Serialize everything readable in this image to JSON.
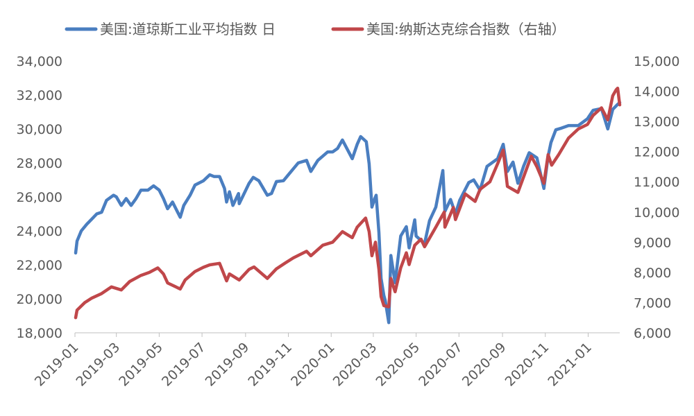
{
  "chart_data": {
    "type": "line",
    "title": "",
    "legend_position": "top",
    "grid": false,
    "x_ticks": [
      "2019-01",
      "2019-03",
      "2019-05",
      "2019-07",
      "2019-09",
      "2019-11",
      "2020-01",
      "2020-03",
      "2020-05",
      "2020-07",
      "2020-09",
      "2020-11",
      "2021-01"
    ],
    "x_range": [
      "2019-01",
      "2021-02-15"
    ],
    "y_left": {
      "range": [
        18000,
        34000
      ],
      "ticks": [
        "18,000",
        "20,000",
        "22,000",
        "24,000",
        "26,000",
        "28,000",
        "30,000",
        "32,000",
        "34,000"
      ]
    },
    "y_right": {
      "range": [
        6000,
        15000
      ],
      "ticks": [
        "6,000",
        "7,000",
        "8,000",
        "9,000",
        "10,000",
        "11,000",
        "12,000",
        "13,000",
        "14,000",
        "15,000"
      ]
    },
    "series": [
      {
        "name": "美国:道琼斯工业平均指数 日",
        "color": "#4A7EC0",
        "axis": "left",
        "points": [
          [
            "2019-01-02",
            22700
          ],
          [
            "2019-01-04",
            23400
          ],
          [
            "2019-01-10",
            24000
          ],
          [
            "2019-01-18",
            24400
          ],
          [
            "2019-01-25",
            24700
          ],
          [
            "2019-02-01",
            25000
          ],
          [
            "2019-02-08",
            25100
          ],
          [
            "2019-02-15",
            25800
          ],
          [
            "2019-02-25",
            26100
          ],
          [
            "2019-03-01",
            26000
          ],
          [
            "2019-03-08",
            25500
          ],
          [
            "2019-03-15",
            25900
          ],
          [
            "2019-03-22",
            25500
          ],
          [
            "2019-03-29",
            25900
          ],
          [
            "2019-04-05",
            26400
          ],
          [
            "2019-04-15",
            26400
          ],
          [
            "2019-04-23",
            26650
          ],
          [
            "2019-05-01",
            26400
          ],
          [
            "2019-05-07",
            25900
          ],
          [
            "2019-05-13",
            25300
          ],
          [
            "2019-05-20",
            25700
          ],
          [
            "2019-05-31",
            24800
          ],
          [
            "2019-06-05",
            25500
          ],
          [
            "2019-06-14",
            26100
          ],
          [
            "2019-06-21",
            26700
          ],
          [
            "2019-07-03",
            26950
          ],
          [
            "2019-07-12",
            27300
          ],
          [
            "2019-07-18",
            27200
          ],
          [
            "2019-07-26",
            27200
          ],
          [
            "2019-08-02",
            26500
          ],
          [
            "2019-08-05",
            25700
          ],
          [
            "2019-08-09",
            26300
          ],
          [
            "2019-08-14",
            25500
          ],
          [
            "2019-08-22",
            26200
          ],
          [
            "2019-08-23",
            25600
          ],
          [
            "2019-09-06",
            26800
          ],
          [
            "2019-09-12",
            27150
          ],
          [
            "2019-09-20",
            26950
          ],
          [
            "2019-10-02",
            26100
          ],
          [
            "2019-10-08",
            26200
          ],
          [
            "2019-10-15",
            26900
          ],
          [
            "2019-10-25",
            26950
          ],
          [
            "2019-11-01",
            27300
          ],
          [
            "2019-11-15",
            28000
          ],
          [
            "2019-11-27",
            28150
          ],
          [
            "2019-12-03",
            27500
          ],
          [
            "2019-12-13",
            28150
          ],
          [
            "2019-12-27",
            28650
          ],
          [
            "2020-01-03",
            28650
          ],
          [
            "2020-01-10",
            28850
          ],
          [
            "2020-01-17",
            29350
          ],
          [
            "2020-01-31",
            28250
          ],
          [
            "2020-02-07",
            29100
          ],
          [
            "2020-02-12",
            29550
          ],
          [
            "2020-02-20",
            29250
          ],
          [
            "2020-02-24",
            27950
          ],
          [
            "2020-02-28",
            25400
          ],
          [
            "2020-03-03",
            25900
          ],
          [
            "2020-03-05",
            26100
          ],
          [
            "2020-03-09",
            23900
          ],
          [
            "2020-03-12",
            21200
          ],
          [
            "2020-03-16",
            20200
          ],
          [
            "2020-03-18",
            19900
          ],
          [
            "2020-03-23",
            18600
          ],
          [
            "2020-03-26",
            22550
          ],
          [
            "2020-04-01",
            20950
          ],
          [
            "2020-04-09",
            23700
          ],
          [
            "2020-04-17",
            24250
          ],
          [
            "2020-04-21",
            23000
          ],
          [
            "2020-04-29",
            24650
          ],
          [
            "2020-05-01",
            23700
          ],
          [
            "2020-05-13",
            23250
          ],
          [
            "2020-05-20",
            24600
          ],
          [
            "2020-05-29",
            25400
          ],
          [
            "2020-06-08",
            27550
          ],
          [
            "2020-06-11",
            25150
          ],
          [
            "2020-06-19",
            25850
          ],
          [
            "2020-06-26",
            25000
          ],
          [
            "2020-07-02",
            25800
          ],
          [
            "2020-07-15",
            26850
          ],
          [
            "2020-07-22",
            27000
          ],
          [
            "2020-07-31",
            26400
          ],
          [
            "2020-08-10",
            27800
          ],
          [
            "2020-08-25",
            28250
          ],
          [
            "2020-09-02",
            29100
          ],
          [
            "2020-09-08",
            27500
          ],
          [
            "2020-09-16",
            28050
          ],
          [
            "2020-09-23",
            26800
          ],
          [
            "2020-10-01",
            27800
          ],
          [
            "2020-10-09",
            28600
          ],
          [
            "2020-10-20",
            28300
          ],
          [
            "2020-10-30",
            26500
          ],
          [
            "2020-11-05",
            28400
          ],
          [
            "2020-11-09",
            29200
          ],
          [
            "2020-11-16",
            29950
          ],
          [
            "2020-11-24",
            30050
          ],
          [
            "2020-12-04",
            30200
          ],
          [
            "2020-12-18",
            30200
          ],
          [
            "2020-12-31",
            30600
          ],
          [
            "2021-01-08",
            31100
          ],
          [
            "2021-01-20",
            31200
          ],
          [
            "2021-01-29",
            30000
          ],
          [
            "2021-02-05",
            31150
          ],
          [
            "2021-02-12",
            31450
          ],
          [
            "2021-02-15",
            31550
          ]
        ]
      },
      {
        "name": "美国:纳斯达克综合指数（右轴）",
        "color": "#C0474A",
        "axis": "right",
        "points": [
          [
            "2019-01-02",
            6500
          ],
          [
            "2019-01-04",
            6750
          ],
          [
            "2019-01-15",
            7000
          ],
          [
            "2019-01-25",
            7150
          ],
          [
            "2019-02-08",
            7300
          ],
          [
            "2019-02-22",
            7520
          ],
          [
            "2019-03-08",
            7420
          ],
          [
            "2019-03-20",
            7700
          ],
          [
            "2019-04-05",
            7900
          ],
          [
            "2019-04-17",
            8000
          ],
          [
            "2019-04-29",
            8150
          ],
          [
            "2019-05-07",
            7950
          ],
          [
            "2019-05-13",
            7650
          ],
          [
            "2019-05-31",
            7450
          ],
          [
            "2019-06-07",
            7750
          ],
          [
            "2019-06-21",
            8030
          ],
          [
            "2019-07-03",
            8170
          ],
          [
            "2019-07-12",
            8250
          ],
          [
            "2019-07-26",
            8300
          ],
          [
            "2019-08-05",
            7720
          ],
          [
            "2019-08-09",
            7950
          ],
          [
            "2019-08-23",
            7750
          ],
          [
            "2019-09-06",
            8100
          ],
          [
            "2019-09-13",
            8180
          ],
          [
            "2019-10-02",
            7800
          ],
          [
            "2019-10-15",
            8120
          ],
          [
            "2019-10-28",
            8320
          ],
          [
            "2019-11-08",
            8480
          ],
          [
            "2019-11-27",
            8700
          ],
          [
            "2019-12-03",
            8550
          ],
          [
            "2019-12-20",
            8900
          ],
          [
            "2020-01-03",
            9000
          ],
          [
            "2020-01-17",
            9350
          ],
          [
            "2020-01-31",
            9150
          ],
          [
            "2020-02-07",
            9500
          ],
          [
            "2020-02-19",
            9800
          ],
          [
            "2020-02-24",
            9350
          ],
          [
            "2020-02-28",
            8550
          ],
          [
            "2020-03-04",
            9000
          ],
          [
            "2020-03-09",
            8100
          ],
          [
            "2020-03-12",
            7200
          ],
          [
            "2020-03-16",
            6900
          ],
          [
            "2020-03-23",
            6860
          ],
          [
            "2020-03-26",
            7800
          ],
          [
            "2020-04-01",
            7360
          ],
          [
            "2020-04-09",
            8150
          ],
          [
            "2020-04-17",
            8650
          ],
          [
            "2020-04-21",
            8260
          ],
          [
            "2020-04-29",
            8900
          ],
          [
            "2020-05-08",
            9100
          ],
          [
            "2020-05-13",
            8850
          ],
          [
            "2020-05-29",
            9500
          ],
          [
            "2020-06-10",
            10000
          ],
          [
            "2020-06-11",
            9500
          ],
          [
            "2020-06-23",
            10150
          ],
          [
            "2020-06-26",
            9750
          ],
          [
            "2020-07-10",
            10600
          ],
          [
            "2020-07-24",
            10350
          ],
          [
            "2020-07-31",
            10750
          ],
          [
            "2020-08-14",
            11000
          ],
          [
            "2020-08-26",
            11650
          ],
          [
            "2020-09-02",
            12050
          ],
          [
            "2020-09-08",
            10850
          ],
          [
            "2020-09-23",
            10650
          ],
          [
            "2020-10-12",
            11850
          ],
          [
            "2020-10-20",
            11500
          ],
          [
            "2020-10-30",
            10950
          ],
          [
            "2020-11-05",
            11900
          ],
          [
            "2020-11-10",
            11550
          ],
          [
            "2020-11-20",
            11900
          ],
          [
            "2020-12-04",
            12450
          ],
          [
            "2020-12-18",
            12750
          ],
          [
            "2020-12-31",
            12900
          ],
          [
            "2021-01-08",
            13200
          ],
          [
            "2021-01-20",
            13450
          ],
          [
            "2021-01-29",
            13050
          ],
          [
            "2021-02-05",
            13850
          ],
          [
            "2021-02-10",
            14050
          ],
          [
            "2021-02-12",
            14100
          ],
          [
            "2021-02-15",
            13550
          ]
        ]
      }
    ]
  }
}
